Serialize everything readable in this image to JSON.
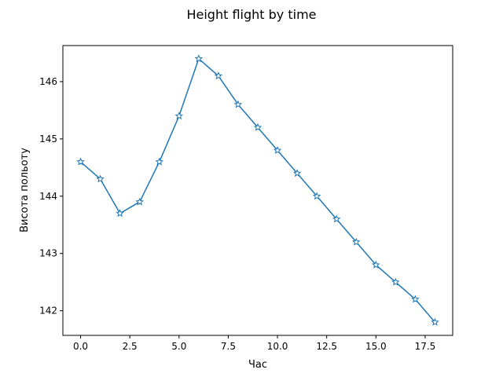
{
  "chart_data": {
    "type": "line",
    "title": "Height flight by time",
    "xlabel": "Час",
    "ylabel": "Висота польоту",
    "xlim": [
      -0.9,
      18.9
    ],
    "ylim": [
      141.57,
      146.63
    ],
    "xticks": [
      0.0,
      2.5,
      5.0,
      7.5,
      10.0,
      12.5,
      15.0,
      17.5
    ],
    "xtick_labels": [
      "0.0",
      "2.5",
      "5.0",
      "7.5",
      "10.0",
      "12.5",
      "15.0",
      "17.5"
    ],
    "yticks": [
      142,
      143,
      144,
      145,
      146
    ],
    "ytick_labels": [
      "142",
      "143",
      "144",
      "145",
      "146"
    ],
    "grid": false,
    "series": [
      {
        "color": "#1f77b4",
        "marker": "star",
        "x": [
          0,
          1,
          2,
          3,
          4,
          5,
          6,
          7,
          8,
          9,
          10,
          11,
          12,
          13,
          14,
          15,
          16,
          17,
          18
        ],
        "y": [
          144.6,
          144.3,
          143.7,
          143.9,
          144.6,
          145.4,
          146.4,
          146.1,
          145.6,
          145.2,
          144.8,
          144.4,
          144.0,
          143.6,
          143.2,
          142.8,
          142.5,
          142.2,
          141.8
        ]
      }
    ]
  }
}
